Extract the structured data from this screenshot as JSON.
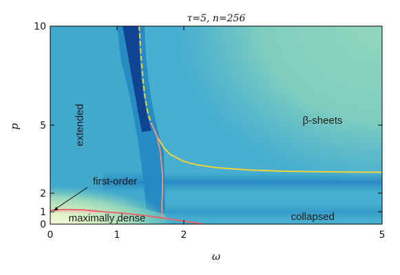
{
  "chart_data": {
    "type": "heatmap",
    "title": "τ=5, n=256",
    "xlabel": "ω",
    "ylabel": "p",
    "xlim": [
      0,
      5
    ],
    "ylim": [
      0,
      10
    ],
    "x_ticks": [
      0,
      1,
      2,
      5
    ],
    "y_ticks": [
      0,
      1,
      2,
      5,
      10
    ],
    "grid": false,
    "colormap_colors": [
      "#f7fcdc",
      "#8fd8bb",
      "#41b6c4",
      "#1d91c0",
      "#0c3c8e"
    ],
    "annotations": [
      {
        "text": "extended",
        "x": 0.45,
        "y": 5.0,
        "rotation": -90
      },
      {
        "text": "first-order",
        "x": 0.97,
        "y": 2.5,
        "arrow_to": [
          0.05,
          1.05
        ]
      },
      {
        "text": "maximally dense",
        "x": 0.85,
        "y": 0.45
      },
      {
        "text": "β-sheets",
        "x": 4.1,
        "y": 5.2
      },
      {
        "text": "collapsed",
        "x": 3.95,
        "y": 0.55
      }
    ],
    "series": [
      {
        "color": "#f0d33a",
        "style": "dashed",
        "x": [
          1.33,
          1.36,
          1.39,
          1.42,
          1.45,
          1.48,
          1.52
        ],
        "y": [
          10.0,
          8.5,
          7.3,
          6.4,
          5.8,
          5.4,
          5.05
        ]
      },
      {
        "color": "#f0d33a",
        "style": "solid",
        "x": [
          1.52,
          1.6,
          1.7,
          1.8,
          2.0,
          2.2,
          2.5,
          3.0,
          3.5,
          4.0,
          4.5,
          5.0
        ],
        "y": [
          5.05,
          4.5,
          4.0,
          3.7,
          3.4,
          3.25,
          3.12,
          3.02,
          2.97,
          2.95,
          2.93,
          2.92
        ]
      },
      {
        "color": "#ea8f86",
        "style": "solid",
        "x": [
          1.52,
          1.6,
          1.65,
          1.68,
          1.68,
          1.67,
          1.68
        ],
        "y": [
          5.05,
          4.5,
          3.8,
          2.8,
          2.0,
          1.3,
          0.5
        ]
      },
      {
        "color": "#e8636a",
        "style": "solid",
        "x": [
          0.0,
          0.2,
          0.5,
          0.8,
          1.1,
          1.4,
          1.68,
          2.0,
          2.3
        ],
        "y": [
          1.08,
          1.12,
          1.1,
          1.0,
          0.88,
          0.7,
          0.5,
          0.25,
          0.0
        ]
      },
      {
        "color": "#f2c4b5",
        "style": "solid",
        "x": [
          0.0,
          0.2,
          0.45,
          0.7
        ],
        "y": [
          1.0,
          1.02,
          1.0,
          0.92
        ]
      }
    ]
  }
}
